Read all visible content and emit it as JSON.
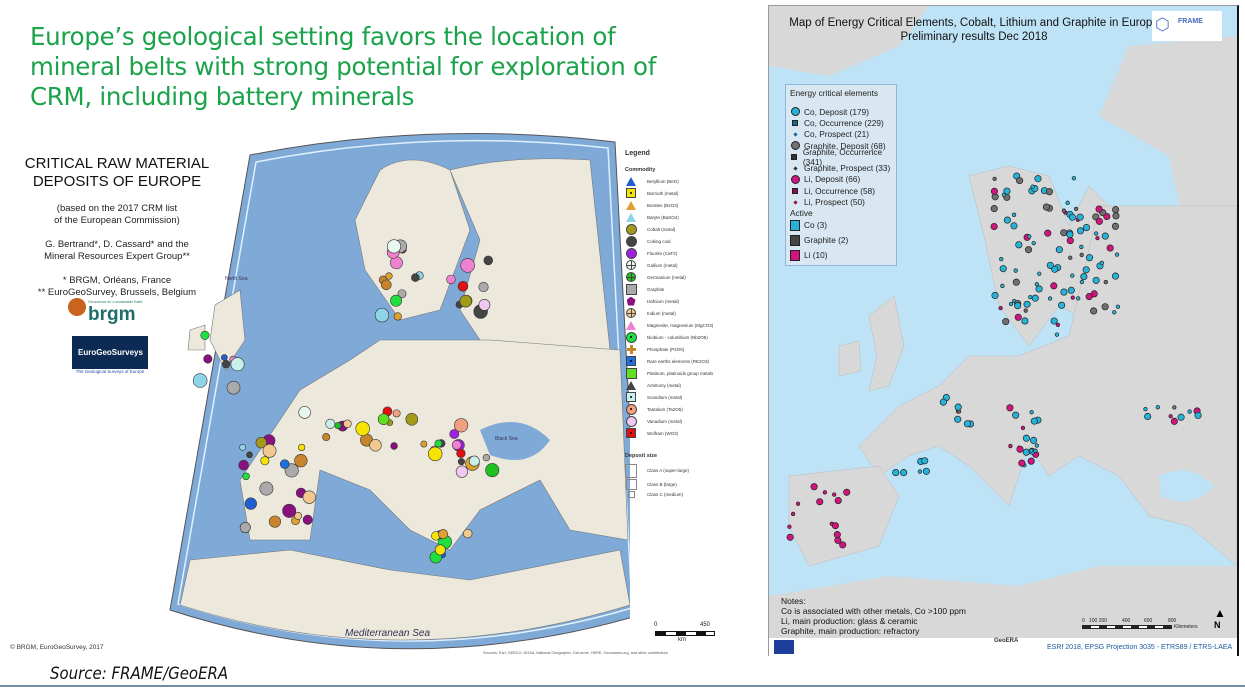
{
  "headline": "Europe’s geological setting  favors the location of mineral belts with strong potential for exploration of CRM, including battery minerals",
  "left_map": {
    "title_line1": "CRITICAL RAW MATERIAL",
    "title_line2": "DEPOSITS OF EUROPE",
    "basis_line1": "(based on the 2017 CRM list",
    "basis_line2": "of the European Commission)",
    "authors_line1": "G. Bertrand*, D. Cassard* and the",
    "authors_line2": "Mineral Resources Expert Group**",
    "affil_line1": "* BRGM, Orléans, France",
    "affil_line2": "** EuroGeoSurvey, Brussels, Belgium",
    "brgm_logo": "brgm",
    "brgm_tagline": "Geoscience for a sustainable Earth",
    "egs_logo": "EuroGeoSurveys",
    "egs_tagline": "The Geological Surveys of Europe",
    "legend_title": "Legend",
    "commodity_title": "Commodity",
    "commodities": [
      {
        "label": "Beryllium (BeO)",
        "shape": "triangle",
        "color": "#1f5fd0"
      },
      {
        "label": "Bismuth (metal)",
        "shape": "square-dot",
        "color": "#f5e400"
      },
      {
        "label": "Borates (B2O3)",
        "shape": "triangle",
        "color": "#e0a030"
      },
      {
        "label": "Baryte (BaSO4)",
        "shape": "triangle",
        "color": "#8fd3e8"
      },
      {
        "label": "Cobalt (metal)",
        "shape": "circle",
        "color": "#a39a1a"
      },
      {
        "label": "Coking coal",
        "shape": "circle",
        "color": "#444444"
      },
      {
        "label": "Fluorite (CaF2)",
        "shape": "circle",
        "color": "#a020e0"
      },
      {
        "label": "Gallium (metal)",
        "shape": "circle-cross",
        "color": "#e8f8f0"
      },
      {
        "label": "Germanium (metal)",
        "shape": "circle-cross",
        "color": "#20c020"
      },
      {
        "label": "Graphite",
        "shape": "square",
        "color": "#aaaaaa"
      },
      {
        "label": "Hafnium (metal)",
        "shape": "pentagon",
        "color": "#8a1080"
      },
      {
        "label": "Indium (metal)",
        "shape": "circle-cross",
        "color": "#f0c890"
      },
      {
        "label": "Magnesite, magnesium (MgCO3)",
        "shape": "triangle",
        "color": "#f080d0"
      },
      {
        "label": "Niobium - columbium (Nb2O5)",
        "shape": "circle-dot",
        "color": "#20e040"
      },
      {
        "label": "Phosphate (P2O5)",
        "shape": "cross",
        "color": "#c8842a"
      },
      {
        "label": "Rare earths elements (RE2O3)",
        "shape": "square-dot",
        "color": "#1e6fe0"
      },
      {
        "label": "Platinum, platinoids group metals",
        "shape": "square",
        "color": "#60e020"
      },
      {
        "label": "Antimony (metal)",
        "shape": "triangle",
        "color": "#444444"
      },
      {
        "label": "Scandium (metal)",
        "shape": "square-dot",
        "color": "#c8f0e8"
      },
      {
        "label": "Tantalum (Ta2O5)",
        "shape": "circle-dot",
        "color": "#f0a080"
      },
      {
        "label": "Vanadium (metal)",
        "shape": "circle",
        "color": "#f0c8f0"
      },
      {
        "label": "Wolfram (WO3)",
        "shape": "square-dot",
        "color": "#e01010"
      }
    ],
    "deposit_size_title": "Deposit size",
    "deposit_sizes": [
      "Class A (super-large)",
      "Class B (large)",
      "Class C (medium)"
    ],
    "scale_start": "0",
    "scale_end": "450",
    "scale_unit": "km",
    "sea_labels": [
      "North Sea",
      "Black Sea",
      "Mediterranean Sea"
    ],
    "copyright": "© BRGM, EuroGeoSurvey, 2017",
    "sources": "Sources: Esri, GEBCO, NOAA, National Geographic, DeLorme, HERE, Geonames.org, and other contributors",
    "colors": {
      "sea": "#7fa9d6",
      "land": "#ece8dc"
    }
  },
  "right_map": {
    "title_line1": "Map of  Energy Critical Elements, Cobalt, Lithium and Graphite in Europe",
    "title_line2": "Preliminary results Dec 2018",
    "frame_logo": "FRAME",
    "legend_title": "Energy critical elements",
    "legend_items": [
      {
        "label": "Co, Deposit (179)",
        "shape": "circle",
        "color": "#27b3d9"
      },
      {
        "label": "Co, Occurrence (229)",
        "shape": "small-square",
        "color": "#1a6b8a"
      },
      {
        "label": "Co, Prospect (21)",
        "shape": "dot",
        "color": "#1a6b8a"
      },
      {
        "label": "Graphite, Deposit (68)",
        "shape": "circle",
        "color": "#707070"
      },
      {
        "label": "Graphite, Occurrence (341)",
        "shape": "small-square",
        "color": "#333333"
      },
      {
        "label": "Graphite, Prospect (33)",
        "shape": "dot",
        "color": "#333333"
      },
      {
        "label": "Li, Deposit (66)",
        "shape": "circle",
        "color": "#d0157f"
      },
      {
        "label": "Li, Occurrence (58)",
        "shape": "small-square",
        "color": "#8a1050"
      },
      {
        "label": "Li, Prospect (50)",
        "shape": "dot",
        "color": "#8a1050"
      }
    ],
    "active_title": "Active",
    "active_items": [
      {
        "label": "Co (3)",
        "color": "#27b3d9"
      },
      {
        "label": "Graphite (2)",
        "color": "#444444"
      },
      {
        "label": "Li (10)",
        "color": "#d0157f"
      }
    ],
    "notes_title": "Notes:",
    "notes": [
      "Co is associated with other metals, Co >100 ppm",
      "Li, main production: glass & ceramic",
      "Graphite, main production: refractory"
    ],
    "scale_ticks": [
      "0",
      "100 200",
      "400",
      "600",
      "800"
    ],
    "scale_unit": "Kilometers",
    "north": "N",
    "projection": "ESRI 2018, EPSG Projection 3035 - ETRS89 / ETRS-LAEA",
    "geoera_logo": "GeoERA",
    "colors": {
      "sea": "#bfe3f6",
      "land": "#d8d8d8"
    }
  },
  "source": "Source: FRAME/GeoERA"
}
